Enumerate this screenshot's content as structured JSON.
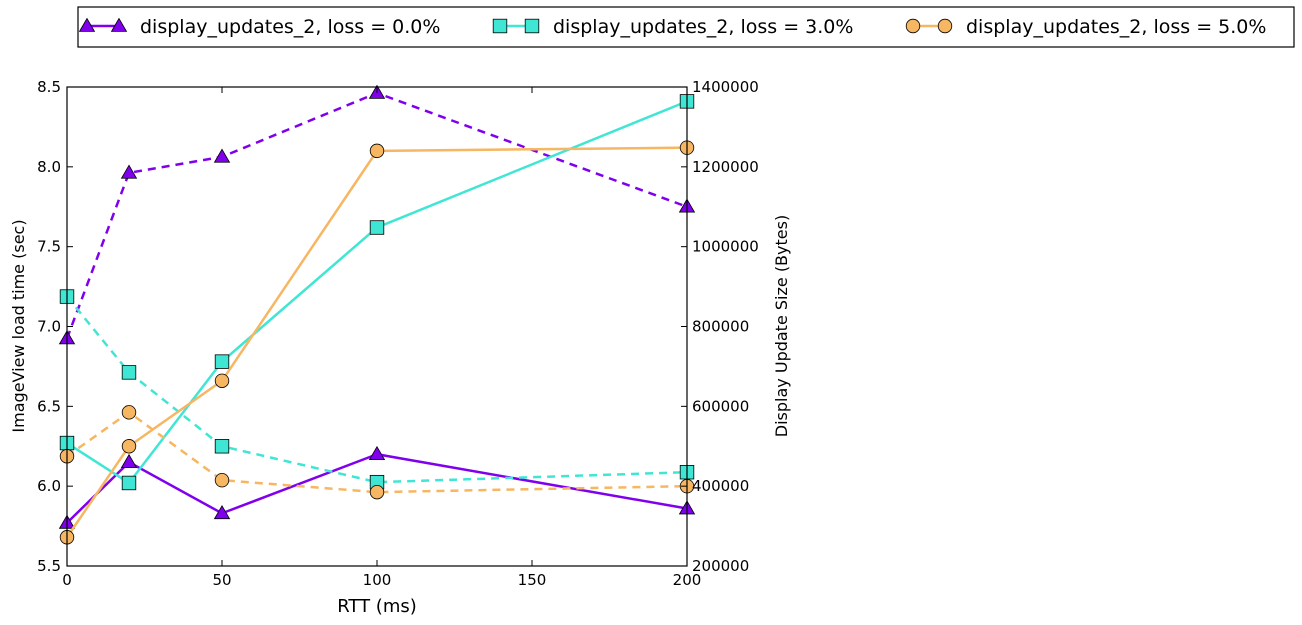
{
  "chart_data": {
    "type": "line",
    "xlabel": "RTT (ms)",
    "ylabel_left": "ImageView load time (sec)",
    "ylabel_right": "Display Update Size (Bytes)",
    "x": [
      0,
      20,
      50,
      100,
      200
    ],
    "xlim": [
      0,
      200
    ],
    "ylim_left": [
      5.5,
      8.5
    ],
    "ylim_right": [
      200000,
      1400000
    ],
    "xticks": [
      "0",
      "50",
      "100",
      "150",
      "200"
    ],
    "yticks_left": [
      "5.5",
      "6.0",
      "6.5",
      "7.0",
      "7.5",
      "8.0",
      "8.5"
    ],
    "yticks_right": [
      "200000",
      "400000",
      "600000",
      "800000",
      "1000000",
      "1200000",
      "1400000"
    ],
    "grid": false,
    "legend_position": "top",
    "series": [
      {
        "name": "display_updates_2, loss = 0.0%",
        "color": "#8000ee",
        "marker": "triangle",
        "load_time_sec": [
          5.77,
          6.15,
          5.83,
          6.2,
          5.86
        ],
        "update_size_bytes": [
          770000,
          1185000,
          1225000,
          1385000,
          1100000
        ]
      },
      {
        "name": "display_updates_2, loss = 3.0%",
        "color": "#40e6d4",
        "marker": "square",
        "load_time_sec": [
          6.27,
          6.02,
          6.78,
          7.62,
          8.41
        ],
        "update_size_bytes": [
          875000,
          685000,
          500000,
          410000,
          435000
        ]
      },
      {
        "name": "display_updates_2, loss = 5.0%",
        "color": "#f7b661",
        "marker": "circle",
        "load_time_sec": [
          5.68,
          6.25,
          6.66,
          8.1,
          8.12
        ],
        "update_size_bytes": [
          475000,
          585000,
          415000,
          385000,
          400000
        ]
      }
    ]
  }
}
